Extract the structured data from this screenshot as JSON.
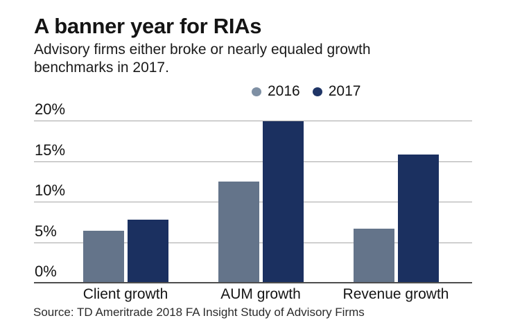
{
  "header": {
    "title": "A banner year for RIAs",
    "subtitle": "Advisory firms either broke or nearly equaled growth benchmarks in 2017."
  },
  "legend": [
    {
      "label": "2016",
      "color": "#7f90a4"
    },
    {
      "label": "2017",
      "color": "#1f3566"
    }
  ],
  "source": "Source: TD Ameritrade 2018 FA Insight Study of Advisory Firms",
  "chart_data": {
    "type": "bar",
    "title": "A banner year for RIAs",
    "subtitle": "Advisory firms either broke or nearly equaled growth benchmarks in 2017.",
    "categories": [
      "Client growth",
      "AUM growth",
      "Revenue growth"
    ],
    "series": [
      {
        "name": "2016",
        "color": "#64748a",
        "values": [
          6.4,
          12.5,
          6.7
        ]
      },
      {
        "name": "2017",
        "color": "#1b3060",
        "values": [
          7.8,
          19.9,
          15.8
        ]
      }
    ],
    "xlabel": "",
    "ylabel": "",
    "ylim": [
      0,
      20
    ],
    "yticks": [
      {
        "value": 0,
        "label": "0%"
      },
      {
        "value": 5,
        "label": "5%"
      },
      {
        "value": 10,
        "label": "10%"
      },
      {
        "value": 15,
        "label": "15%"
      },
      {
        "value": 20,
        "label": "20%"
      }
    ],
    "grid": true,
    "legend_position": "top-center",
    "source": "Source: TD Ameritrade 2018 FA Insight Study of Advisory Firms"
  }
}
